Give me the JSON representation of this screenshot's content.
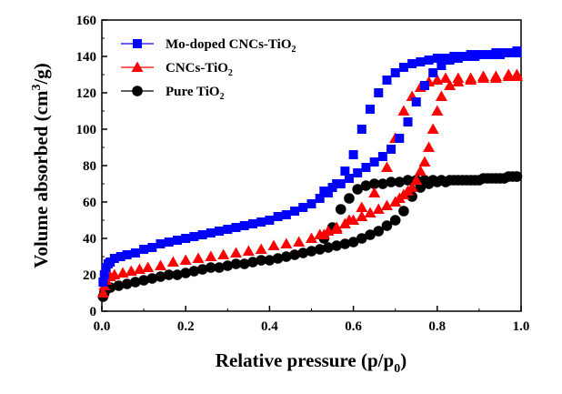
{
  "chart_data": {
    "type": "scatter",
    "xlabel_main": "Relative pressure (p/p",
    "xlabel_sub": "0",
    "xlabel_end": ")",
    "ylabel_main": "Volume absorbed (cm",
    "ylabel_sup": "3",
    "ylabel_end": "/g)",
    "xlim": [
      0.0,
      1.0
    ],
    "ylim": [
      0,
      160
    ],
    "xticks": [
      "0.0",
      "0.2",
      "0.4",
      "0.6",
      "0.8",
      "1.0"
    ],
    "yticks": [
      "0",
      "20",
      "40",
      "60",
      "80",
      "100",
      "120",
      "140",
      "160"
    ],
    "legend_position": "top-left",
    "series": [
      {
        "name": "Mo-doped CNCs-TiO",
        "name_sub": "2",
        "marker": "square",
        "color": "#0000ff",
        "x": [
          0.003,
          0.006,
          0.01,
          0.015,
          0.02,
          0.03,
          0.045,
          0.06,
          0.08,
          0.1,
          0.12,
          0.14,
          0.16,
          0.18,
          0.2,
          0.22,
          0.24,
          0.26,
          0.28,
          0.3,
          0.32,
          0.34,
          0.36,
          0.38,
          0.4,
          0.42,
          0.44,
          0.46,
          0.48,
          0.5,
          0.52,
          0.54,
          0.56,
          0.58,
          0.6,
          0.62,
          0.64,
          0.66,
          0.68,
          0.7,
          0.72,
          0.74,
          0.76,
          0.78,
          0.8,
          0.82,
          0.84,
          0.86,
          0.88,
          0.9,
          0.92,
          0.94,
          0.96,
          0.98,
          0.99,
          0.99,
          0.97,
          0.95,
          0.93,
          0.91,
          0.89,
          0.87,
          0.85,
          0.83,
          0.81,
          0.79,
          0.77,
          0.75,
          0.73,
          0.71,
          0.69,
          0.67,
          0.65,
          0.63,
          0.61,
          0.59,
          0.57,
          0.55,
          0.53
        ],
        "y": [
          16,
          20,
          24,
          26,
          27,
          29,
          30,
          31,
          32,
          34,
          35,
          37,
          38,
          39,
          40,
          41,
          42,
          43,
          44,
          45,
          46,
          47,
          48,
          49,
          50,
          52,
          53,
          55,
          57,
          59,
          62,
          65,
          70,
          77,
          86,
          100,
          111,
          120,
          127,
          131,
          134,
          136,
          137,
          138,
          139,
          139,
          140,
          140,
          141,
          141,
          141,
          142,
          142,
          142,
          143,
          142,
          142,
          141,
          141,
          141,
          140,
          140,
          139,
          138,
          135,
          131,
          124,
          115,
          104,
          95,
          89,
          85,
          82,
          79,
          76,
          73,
          70,
          68,
          66
        ]
      },
      {
        "name": "CNCs-TiO",
        "name_sub": "2",
        "marker": "triangle",
        "color": "#ff0000",
        "x": [
          0.003,
          0.006,
          0.01,
          0.02,
          0.03,
          0.05,
          0.07,
          0.09,
          0.11,
          0.14,
          0.17,
          0.2,
          0.23,
          0.26,
          0.29,
          0.32,
          0.35,
          0.38,
          0.41,
          0.44,
          0.47,
          0.5,
          0.53,
          0.56,
          0.59,
          0.62,
          0.65,
          0.68,
          0.7,
          0.72,
          0.74,
          0.76,
          0.78,
          0.8,
          0.82,
          0.85,
          0.88,
          0.91,
          0.94,
          0.97,
          0.99,
          0.99,
          0.97,
          0.94,
          0.91,
          0.88,
          0.85,
          0.83,
          0.81,
          0.8,
          0.79,
          0.78,
          0.77,
          0.76,
          0.75,
          0.74,
          0.73,
          0.72,
          0.71,
          0.7,
          0.68,
          0.66,
          0.64,
          0.62,
          0.6,
          0.58,
          0.56,
          0.54,
          0.52
        ],
        "y": [
          10,
          14,
          17,
          19,
          20,
          21,
          22,
          23,
          24,
          25,
          27,
          28,
          29,
          30,
          31,
          32,
          33,
          34,
          36,
          37,
          38,
          40,
          42,
          45,
          50,
          57,
          65,
          79,
          95,
          110,
          118,
          123,
          126,
          127,
          128,
          128,
          128,
          129,
          129,
          130,
          130,
          129,
          129,
          128,
          128,
          127,
          126,
          124,
          118,
          110,
          100,
          90,
          82,
          77,
          72,
          68,
          66,
          64,
          62,
          60,
          58,
          56,
          54,
          52,
          50,
          48,
          46,
          44,
          42
        ]
      },
      {
        "name": "Pure TiO",
        "name_sub": "2",
        "marker": "circle",
        "color": "#000000",
        "x": [
          0.003,
          0.006,
          0.01,
          0.02,
          0.04,
          0.06,
          0.08,
          0.1,
          0.12,
          0.14,
          0.16,
          0.18,
          0.2,
          0.22,
          0.24,
          0.26,
          0.28,
          0.3,
          0.32,
          0.34,
          0.36,
          0.38,
          0.4,
          0.42,
          0.44,
          0.46,
          0.48,
          0.5,
          0.52,
          0.54,
          0.56,
          0.58,
          0.6,
          0.62,
          0.64,
          0.66,
          0.68,
          0.7,
          0.72,
          0.74,
          0.76,
          0.78,
          0.8,
          0.82,
          0.84,
          0.86,
          0.88,
          0.9,
          0.92,
          0.94,
          0.96,
          0.98,
          0.99,
          0.99,
          0.97,
          0.95,
          0.93,
          0.91,
          0.89,
          0.87,
          0.85,
          0.83,
          0.81,
          0.79,
          0.77,
          0.75,
          0.73,
          0.71,
          0.69,
          0.67,
          0.65,
          0.63,
          0.61,
          0.59,
          0.57,
          0.55,
          0.53
        ],
        "y": [
          8,
          10,
          12,
          13,
          14,
          15,
          16,
          17,
          18,
          19,
          20,
          20,
          21,
          22,
          23,
          24,
          24,
          25,
          26,
          26,
          27,
          28,
          28,
          29,
          30,
          31,
          32,
          33,
          34,
          35,
          36,
          37,
          38,
          40,
          42,
          44,
          47,
          50,
          55,
          63,
          68,
          70,
          71,
          71,
          72,
          72,
          72,
          72,
          73,
          73,
          73,
          74,
          74,
          74,
          74,
          73,
          73,
          73,
          72,
          72,
          72,
          72,
          72,
          72,
          72,
          72,
          72,
          71,
          71,
          70,
          70,
          69,
          67,
          62,
          56,
          46,
          40
        ]
      }
    ]
  }
}
